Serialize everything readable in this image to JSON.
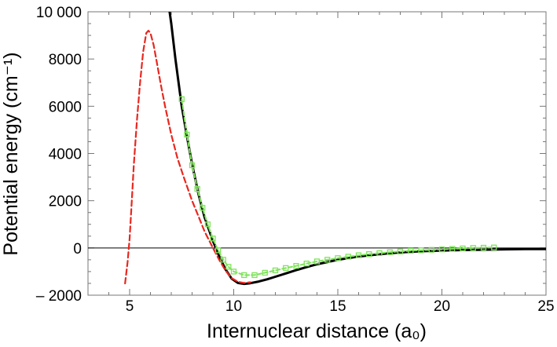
{
  "chart_data": {
    "type": "line",
    "title": "",
    "xlabel": "Internuclear distance (a₀)",
    "ylabel": "Potential energy (cm⁻¹)",
    "xlim": [
      3,
      25
    ],
    "ylim": [
      -2000,
      10000
    ],
    "x_ticks": [
      5,
      10,
      15,
      20,
      25
    ],
    "x_tick_labels": [
      "5",
      "10",
      "15",
      "20",
      "25"
    ],
    "y_ticks": [
      -2000,
      0,
      2000,
      4000,
      6000,
      8000,
      10000
    ],
    "y_tick_labels": [
      "– 2000",
      "0",
      "2000",
      "4000",
      "6000",
      "8000",
      "10 000"
    ],
    "zero_line": true,
    "grid": false,
    "series": [
      {
        "style": "solid",
        "color": "#000000",
        "x": [
          6.92,
          7.0,
          7.2,
          7.5,
          7.8,
          8.0,
          8.3,
          8.6,
          9.0,
          9.3,
          9.6,
          9.9,
          10.2,
          10.5,
          10.8,
          11.2,
          11.6,
          12.0,
          12.5,
          13.0,
          13.5,
          14.0,
          15.0,
          16.0,
          17.0,
          18.0,
          19.0,
          20.0,
          21.0,
          22.0,
          23.0,
          24.0,
          25.0
        ],
        "y": [
          10000,
          9500,
          8000,
          6000,
          4500,
          3550,
          2300,
          1300,
          300,
          -350,
          -900,
          -1300,
          -1480,
          -1520,
          -1490,
          -1420,
          -1330,
          -1220,
          -1080,
          -940,
          -810,
          -690,
          -500,
          -360,
          -260,
          -190,
          -140,
          -110,
          -90,
          -75,
          -60,
          -50,
          -45
        ]
      },
      {
        "style": "dashed",
        "color": "#e8271f",
        "x": [
          4.78,
          4.9,
          5.0,
          5.1,
          5.2,
          5.35,
          5.5,
          5.65,
          5.8,
          5.9,
          6.0,
          6.15,
          6.3,
          6.5,
          6.7,
          7.0,
          7.3,
          7.6,
          8.0,
          8.3,
          8.6,
          9.0,
          9.3,
          9.6,
          9.9,
          10.2,
          10.5,
          10.8
        ],
        "y": [
          -1500,
          -600,
          400,
          1900,
          3500,
          5400,
          7000,
          8300,
          9100,
          9200,
          9100,
          8600,
          7900,
          6900,
          6000,
          4800,
          3800,
          3000,
          2000,
          1350,
          700,
          0,
          -500,
          -950,
          -1280,
          -1430,
          -1480,
          -1450
        ]
      },
      {
        "style": "dashed-markers",
        "color": "#7ee35a",
        "x": [
          7.5,
          7.75,
          8.0,
          8.25,
          8.5,
          8.75,
          9.0,
          9.25,
          9.5,
          9.75,
          10.0,
          10.5,
          11.0,
          11.5,
          12.0,
          12.5,
          13.0,
          13.5,
          14.0,
          14.5,
          15.0,
          15.5,
          16.0,
          16.5,
          17.0,
          17.5,
          18.0,
          18.5,
          19.0,
          19.5,
          20.0,
          20.5,
          21.0,
          21.5,
          22.0,
          22.5
        ],
        "y": [
          6300,
          4800,
          3500,
          2500,
          1700,
          1000,
          400,
          -100,
          -500,
          -800,
          -1000,
          -1150,
          -1150,
          -1050,
          -950,
          -850,
          -760,
          -660,
          -570,
          -500,
          -430,
          -370,
          -310,
          -260,
          -220,
          -180,
          -150,
          -120,
          -100,
          -80,
          -60,
          -40,
          -20,
          0,
          10,
          20
        ]
      }
    ]
  }
}
